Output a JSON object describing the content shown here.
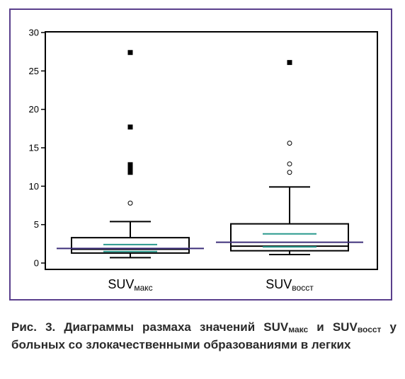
{
  "chart_data": {
    "type": "box",
    "ylim": [
      0,
      30
    ],
    "yticks": [
      0,
      5,
      10,
      15,
      20,
      25,
      30
    ],
    "ytick_labels": [
      "0",
      "5",
      "10",
      "15",
      "20",
      "25",
      "30"
    ],
    "grid": false,
    "categories": [
      {
        "main": "SUV",
        "sub": "макс"
      },
      {
        "main": "SUV",
        "sub": "восст"
      }
    ],
    "boxes": [
      {
        "whisker_low": 0.7,
        "q1": 1.3,
        "median": 1.8,
        "q3": 3.3,
        "whisker_high": 5.4,
        "mean": 1.9,
        "ci_low": 1.5,
        "ci_high": 2.4,
        "outliers_circle": [
          7.8
        ],
        "outliers_square": [
          11.8,
          12.3,
          12.8,
          17.7,
          27.4
        ]
      },
      {
        "whisker_low": 1.1,
        "q1": 1.6,
        "median": 2.2,
        "q3": 5.1,
        "whisker_high": 9.9,
        "mean": 2.7,
        "ci_low": 2.1,
        "ci_high": 3.8,
        "outliers_circle": [
          11.8,
          12.9,
          15.6
        ],
        "outliers_square": [
          26.1
        ]
      }
    ],
    "colors": {
      "box": "#000000",
      "mean_line": "#3d2f7a",
      "ci_line": "#2a9a8e",
      "frame": "#5a3f8c"
    }
  },
  "caption": {
    "prefix": "Рис. 3. Диаграммы размаха значений SUV",
    "sub1": "макс",
    "middle": " и SUV",
    "sub2": "восст",
    "suffix": " у больных со злокачественными образованиями в легких"
  }
}
